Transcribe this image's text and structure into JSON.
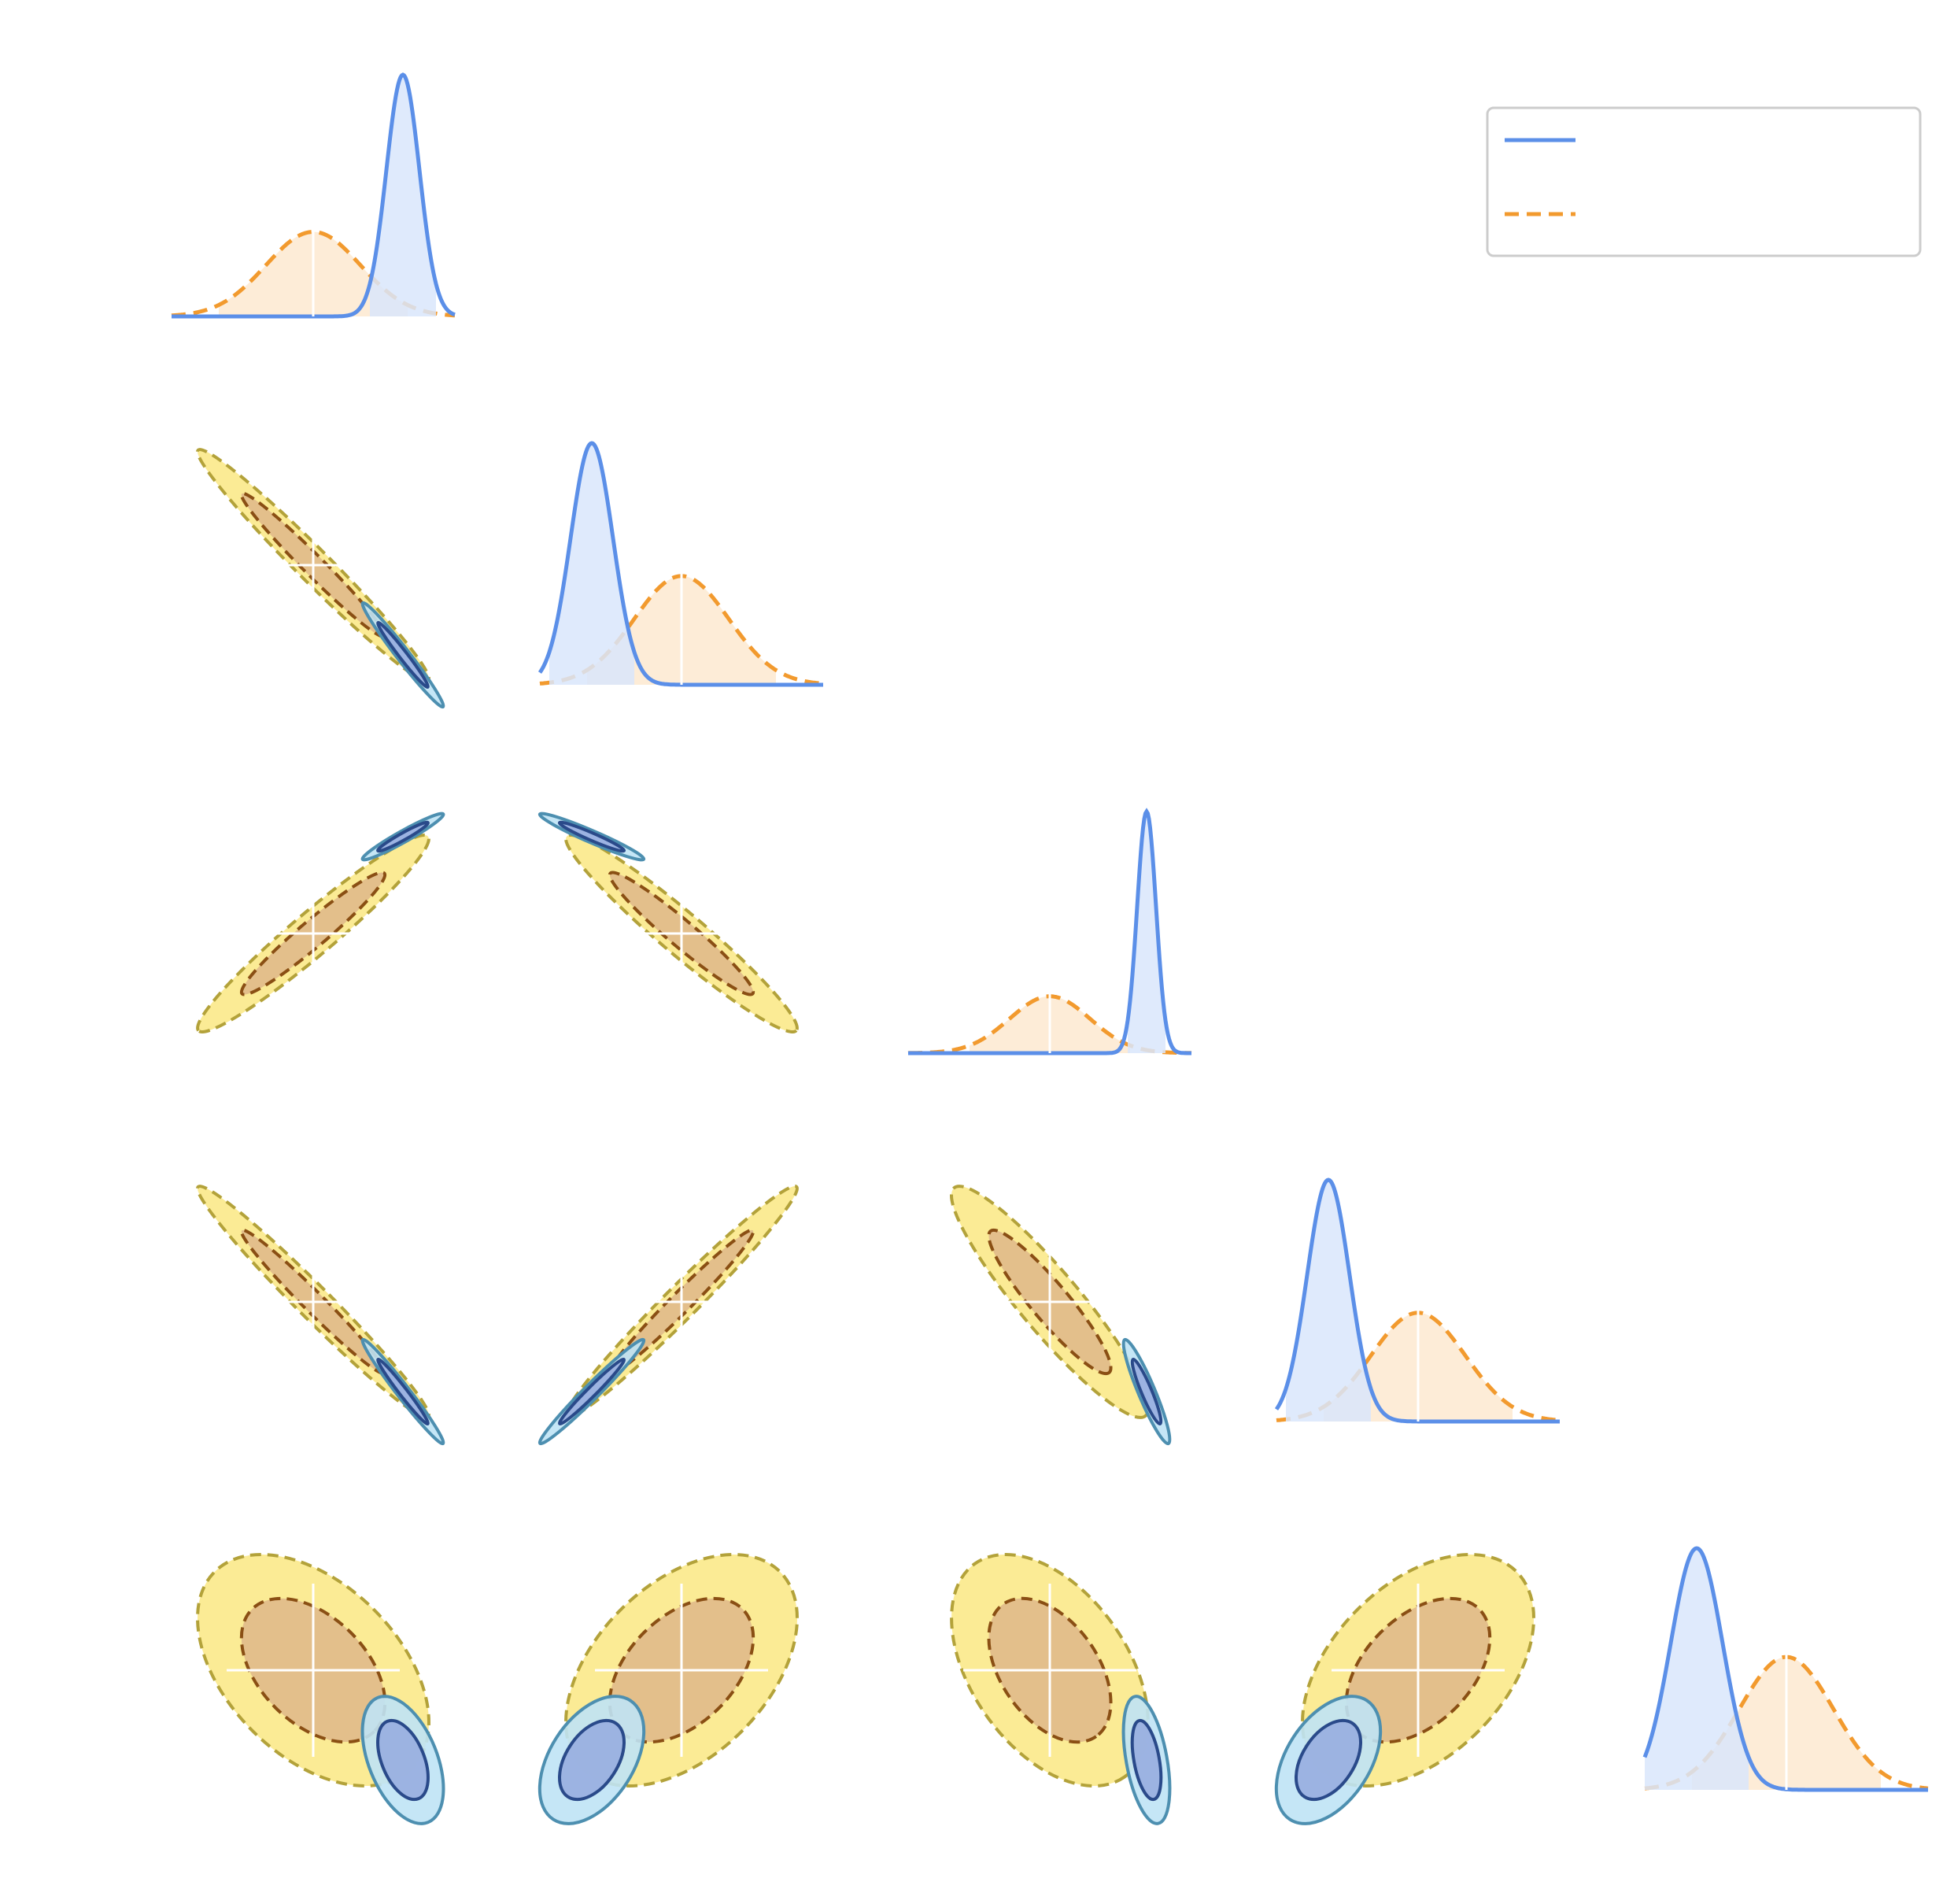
{
  "chart_data": {
    "type": "corner",
    "parameters": [
      "",
      "",
      "",
      "",
      ""
    ],
    "grid": true,
    "legend": {
      "placement": "top-right"
    },
    "series": [
      {
        "name": "",
        "line": "solid",
        "color": "#5b8fe8",
        "fill_color": "#d9e6fb",
        "contour_inner": "#9ab0e0",
        "contour_inner_edge": "#2a4a8a",
        "contour_outer": "#bfe3f5",
        "contour_outer_edge": "#4d8fb0",
        "marginals": [
          {
            "mean": 0.38,
            "sd": 0.07
          },
          {
            "mean": -0.38,
            "sd": 0.09
          },
          {
            "mean": 0.41,
            "sd": 0.04
          },
          {
            "mean": -0.38,
            "sd": 0.09
          },
          {
            "mean": -0.38,
            "sd": 0.11
          }
        ]
      },
      {
        "name": "",
        "line": "dashed",
        "color": "#f29a2e",
        "fill_color": "#fde9d0",
        "contour_inner": "#e2bd8a",
        "contour_inner_edge": "#8a4f14",
        "contour_outer": "#fbe98a",
        "contour_outer_edge": "#b3a23a",
        "marginals": [
          {
            "mean": 0.0,
            "sd": 0.2
          },
          {
            "mean": 0.0,
            "sd": 0.2
          },
          {
            "mean": 0.0,
            "sd": 0.17
          },
          {
            "mean": 0.0,
            "sd": 0.2
          },
          {
            "mean": 0.0,
            "sd": 0.2
          }
        ]
      }
    ],
    "correlations": {
      "1-0": -0.98,
      "2-0": 0.96,
      "2-1": -0.96,
      "3-0": -0.98,
      "3-1": 0.98,
      "3-2": -0.92,
      "4-0": -0.45,
      "4-1": 0.45,
      "4-2": -0.45,
      "4-3": 0.45
    },
    "truth": [
      0,
      0,
      0,
      0,
      0
    ]
  }
}
